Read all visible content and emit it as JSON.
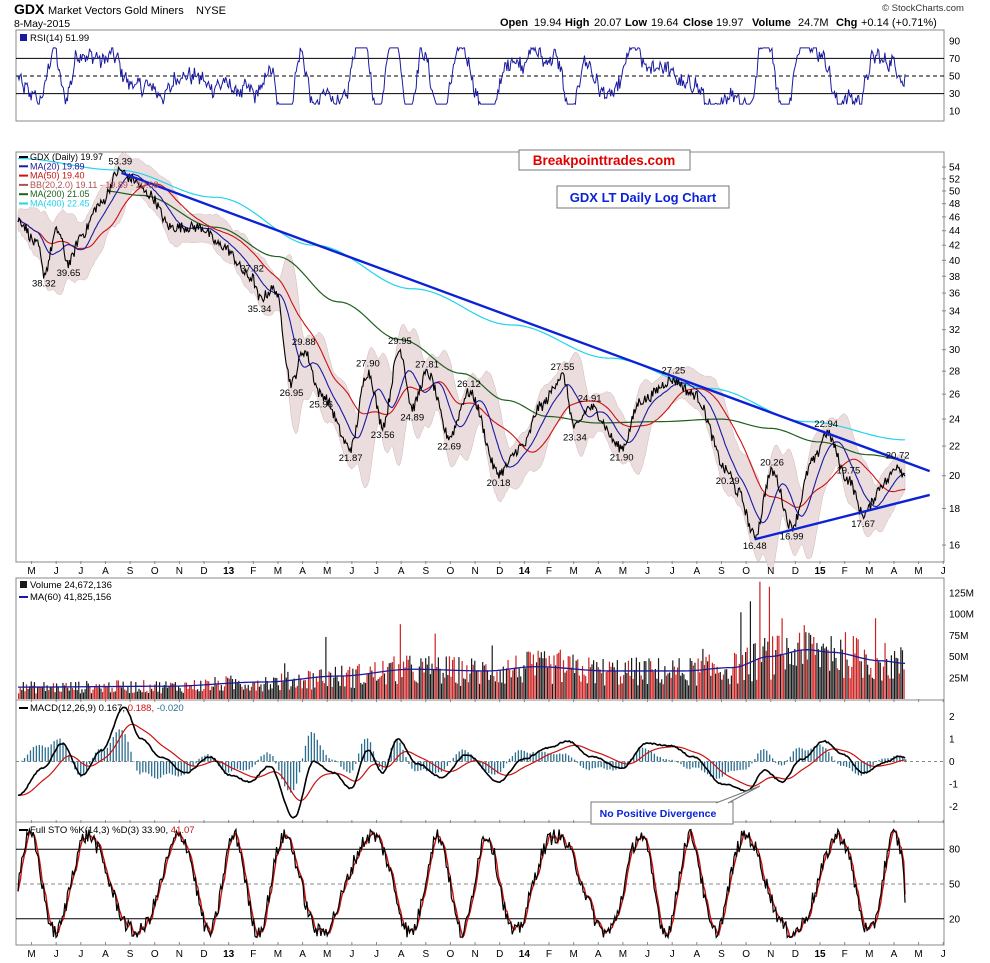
{
  "header": {
    "symbol": "GDX",
    "name": "Market Vectors Gold Miners",
    "exchange": "NYSE",
    "date": "8-May-2015",
    "watermark": "© StockCharts.com",
    "quote_labels": {
      "open": "Open",
      "high": "High",
      "low": "Low",
      "close": "Close",
      "volume": "Volume",
      "chg": "Chg"
    },
    "quote_values": {
      "open": "19.94",
      "high": "20.07",
      "low": "19.64",
      "close": "19.97",
      "volume": "24.7M",
      "chg": "+0.14 (+0.71%)"
    }
  },
  "annotations": {
    "site": "Breakpointtrades.com",
    "title": "GDX LT Daily Log Chart",
    "callout": "No Positive Divergence"
  },
  "colors": {
    "price": "#000000",
    "ma20": "#1a1aa0",
    "ma50": "#cc1111",
    "ma200": "#1f5f1f",
    "ma400": "#22d3ee",
    "bb_fill": "#e8d8d8",
    "trendline": "#0b22d6",
    "volume_up": "#1a1a1a",
    "volume_down": "#cc2222",
    "macd_hist": "#2c6e8e",
    "site_text": "#e00000",
    "title_text": "#0b22d6"
  },
  "chart_data": [
    {
      "panel": "rsi",
      "type": "line",
      "legend": "RSI(14) 51.99",
      "y_ticks": [
        "90",
        "70",
        "50",
        "30",
        "10"
      ],
      "ylim": [
        0,
        100
      ],
      "lines_at": [
        70,
        50,
        30
      ],
      "last": 51.99
    },
    {
      "panel": "price",
      "type": "line",
      "scale": "log",
      "ylim": [
        15.2,
        56.5
      ],
      "y_ticks": [
        "54",
        "52",
        "50",
        "48",
        "46",
        "44",
        "42",
        "40",
        "38",
        "36",
        "34",
        "32",
        "30",
        "28",
        "26",
        "24",
        "22",
        "20",
        "18",
        "16"
      ],
      "x_ticks": [
        "M",
        "J",
        "J",
        "A",
        "S",
        "O",
        "N",
        "D",
        "13",
        "F",
        "M",
        "A",
        "M",
        "J",
        "J",
        "A",
        "S",
        "O",
        "N",
        "D",
        "14",
        "F",
        "M",
        "A",
        "M",
        "J",
        "J",
        "A",
        "S",
        "O",
        "N",
        "D",
        "15",
        "F",
        "M",
        "A",
        "M",
        "J"
      ],
      "legend": [
        {
          "text": "GDX (Daily) 19.97",
          "color": "#000000"
        },
        {
          "text": "MA(20) 19.89",
          "color": "#1a1aa0"
        },
        {
          "text": "MA(50) 19.40",
          "color": "#cc1111"
        },
        {
          "text": "BB(20,2.0) 19.11 - 19.89 - 20.68",
          "color": "#b05050"
        },
        {
          "text": "MA(200) 21.05",
          "color": "#1f5f1f"
        },
        {
          "text": "MA(400) 22.45",
          "color": "#22d3ee"
        }
      ],
      "pivots": [
        {
          "t": 0.0,
          "v": 45.6
        },
        {
          "t": 0.8,
          "v": 42.0
        },
        {
          "t": 1.05,
          "v": 38.32
        },
        {
          "t": 1.6,
          "v": 44.0
        },
        {
          "t": 2.05,
          "v": 39.65
        },
        {
          "t": 2.6,
          "v": 43.5
        },
        {
          "t": 3.3,
          "v": 47.8
        },
        {
          "t": 4.15,
          "v": 53.39
        },
        {
          "t": 4.6,
          "v": 52.0
        },
        {
          "t": 5.3,
          "v": 49.5
        },
        {
          "t": 6.2,
          "v": 44.5
        },
        {
          "t": 7.4,
          "v": 44.5
        },
        {
          "t": 8.2,
          "v": 42.0
        },
        {
          "t": 9.5,
          "v": 37.82
        },
        {
          "t": 9.8,
          "v": 35.34
        },
        {
          "t": 10.4,
          "v": 36.5
        },
        {
          "t": 11.1,
          "v": 26.95
        },
        {
          "t": 11.6,
          "v": 29.88
        },
        {
          "t": 12.3,
          "v": 25.96
        },
        {
          "t": 13.5,
          "v": 21.87
        },
        {
          "t": 14.2,
          "v": 27.9
        },
        {
          "t": 14.8,
          "v": 23.56
        },
        {
          "t": 15.5,
          "v": 29.95
        },
        {
          "t": 16.0,
          "v": 24.89
        },
        {
          "t": 16.6,
          "v": 27.81
        },
        {
          "t": 17.5,
          "v": 22.69
        },
        {
          "t": 18.3,
          "v": 26.12
        },
        {
          "t": 19.5,
          "v": 20.18
        },
        {
          "t": 20.5,
          "v": 22.0
        },
        {
          "t": 21.2,
          "v": 25.0
        },
        {
          "t": 22.1,
          "v": 27.55
        },
        {
          "t": 22.6,
          "v": 23.34
        },
        {
          "t": 23.2,
          "v": 24.91
        },
        {
          "t": 24.5,
          "v": 21.9
        },
        {
          "t": 25.3,
          "v": 25.5
        },
        {
          "t": 26.6,
          "v": 27.25
        },
        {
          "t": 27.4,
          "v": 26.0
        },
        {
          "t": 28.8,
          "v": 20.29
        },
        {
          "t": 29.2,
          "v": 19.0
        },
        {
          "t": 29.9,
          "v": 16.48
        },
        {
          "t": 30.6,
          "v": 20.26
        },
        {
          "t": 31.4,
          "v": 16.99
        },
        {
          "t": 32.3,
          "v": 21.0
        },
        {
          "t": 32.8,
          "v": 22.94
        },
        {
          "t": 33.7,
          "v": 19.75
        },
        {
          "t": 34.3,
          "v": 17.67
        },
        {
          "t": 35.2,
          "v": 19.6
        },
        {
          "t": 35.7,
          "v": 20.72
        },
        {
          "t": 36.0,
          "v": 19.97
        }
      ],
      "labels": [
        {
          "text": "53.39",
          "t": 4.15,
          "v": 53.39,
          "pos": "above"
        },
        {
          "text": "38.32",
          "t": 1.05,
          "v": 38.32,
          "pos": "below"
        },
        {
          "text": "39.65",
          "t": 2.05,
          "v": 39.65,
          "pos": "below"
        },
        {
          "text": "37.82",
          "t": 9.5,
          "v": 37.82,
          "pos": "above"
        },
        {
          "text": "35.34",
          "t": 9.8,
          "v": 35.34,
          "pos": "below"
        },
        {
          "text": "29.88",
          "t": 11.6,
          "v": 29.88,
          "pos": "above"
        },
        {
          "text": "26.95",
          "t": 11.1,
          "v": 26.95,
          "pos": "below"
        },
        {
          "text": "25.96",
          "t": 12.3,
          "v": 25.96,
          "pos": "below"
        },
        {
          "text": "27.90",
          "t": 14.2,
          "v": 27.9,
          "pos": "above"
        },
        {
          "text": "21.87",
          "t": 13.5,
          "v": 21.87,
          "pos": "below"
        },
        {
          "text": "23.56",
          "t": 14.8,
          "v": 23.56,
          "pos": "below"
        },
        {
          "text": "29.95",
          "t": 15.5,
          "v": 29.95,
          "pos": "above"
        },
        {
          "text": "27.81",
          "t": 16.6,
          "v": 27.81,
          "pos": "above"
        },
        {
          "text": "24.89",
          "t": 16.0,
          "v": 24.89,
          "pos": "below"
        },
        {
          "text": "26.12",
          "t": 18.3,
          "v": 26.12,
          "pos": "above"
        },
        {
          "text": "22.69",
          "t": 17.5,
          "v": 22.69,
          "pos": "below"
        },
        {
          "text": "20.18",
          "t": 19.5,
          "v": 20.18,
          "pos": "below"
        },
        {
          "text": "27.55",
          "t": 22.1,
          "v": 27.55,
          "pos": "above"
        },
        {
          "text": "24.91",
          "t": 23.2,
          "v": 24.91,
          "pos": "above"
        },
        {
          "text": "23.34",
          "t": 22.6,
          "v": 23.34,
          "pos": "below"
        },
        {
          "text": "21.90",
          "t": 24.5,
          "v": 21.9,
          "pos": "below"
        },
        {
          "text": "27.25",
          "t": 26.6,
          "v": 27.25,
          "pos": "above"
        },
        {
          "text": "20.29",
          "t": 28.8,
          "v": 20.29,
          "pos": "below"
        },
        {
          "text": "16.48",
          "t": 29.9,
          "v": 16.48,
          "pos": "below"
        },
        {
          "text": "20.26",
          "t": 30.6,
          "v": 20.26,
          "pos": "above"
        },
        {
          "text": "16.99",
          "t": 31.4,
          "v": 16.99,
          "pos": "below"
        },
        {
          "text": "22.94",
          "t": 32.8,
          "v": 22.94,
          "pos": "above"
        },
        {
          "text": "19.75",
          "t": 33.7,
          "v": 19.75,
          "pos": "above"
        },
        {
          "text": "17.67",
          "t": 34.3,
          "v": 17.67,
          "pos": "below"
        },
        {
          "text": "20.72",
          "t": 35.7,
          "v": 20.72,
          "pos": "above"
        }
      ],
      "ma200_pivots": [
        {
          "t": 3.5,
          "v": 50.0
        },
        {
          "t": 5.0,
          "v": 49.3
        },
        {
          "t": 8.0,
          "v": 44.5
        },
        {
          "t": 10.5,
          "v": 40.5
        },
        {
          "t": 13.0,
          "v": 35.0
        },
        {
          "t": 15.5,
          "v": 31.0
        },
        {
          "t": 18.0,
          "v": 27.8
        },
        {
          "t": 19.8,
          "v": 25.5
        },
        {
          "t": 21.5,
          "v": 24.2
        },
        {
          "t": 23.5,
          "v": 23.7
        },
        {
          "t": 26.0,
          "v": 23.8
        },
        {
          "t": 28.5,
          "v": 24.0
        },
        {
          "t": 30.5,
          "v": 23.3
        },
        {
          "t": 32.5,
          "v": 22.3
        },
        {
          "t": 34.5,
          "v": 21.4
        },
        {
          "t": 36.0,
          "v": 21.05
        }
      ],
      "ma400_pivots": [
        {
          "t": 0.0,
          "v": 55.5
        },
        {
          "t": 4.0,
          "v": 53.5
        },
        {
          "t": 8.0,
          "v": 49.0
        },
        {
          "t": 12.0,
          "v": 42.0
        },
        {
          "t": 16.0,
          "v": 36.5
        },
        {
          "t": 20.0,
          "v": 32.5
        },
        {
          "t": 24.0,
          "v": 29.2
        },
        {
          "t": 28.0,
          "v": 26.5
        },
        {
          "t": 32.0,
          "v": 23.8
        },
        {
          "t": 36.0,
          "v": 22.45
        }
      ],
      "trendlines": [
        {
          "t0": 4.2,
          "v0": 53.0,
          "t1": 37.0,
          "v1": 20.3
        },
        {
          "t0": 29.9,
          "v0": 16.3,
          "t1": 37.0,
          "v1": 18.8
        }
      ]
    },
    {
      "panel": "volume",
      "type": "bar",
      "legend": "Volume 24,672,136",
      "legend_ma": "MA(60) 41,825,156",
      "y_ticks": [
        "125M",
        "100M",
        "75M",
        "50M",
        "25M"
      ],
      "ylim": [
        0,
        140
      ],
      "unit": "millions",
      "ma_pivots": [
        {
          "t": 0,
          "v": 14
        },
        {
          "t": 6,
          "v": 15
        },
        {
          "t": 10,
          "v": 20
        },
        {
          "t": 13,
          "v": 27
        },
        {
          "t": 16,
          "v": 35
        },
        {
          "t": 19,
          "v": 33
        },
        {
          "t": 21,
          "v": 38
        },
        {
          "t": 24,
          "v": 33
        },
        {
          "t": 27,
          "v": 33
        },
        {
          "t": 29,
          "v": 37
        },
        {
          "t": 30.5,
          "v": 50
        },
        {
          "t": 32,
          "v": 58
        },
        {
          "t": 33,
          "v": 55
        },
        {
          "t": 35,
          "v": 45
        },
        {
          "t": 36,
          "v": 42
        }
      ],
      "spikes": [
        {
          "t": 10.8,
          "v": 42
        },
        {
          "t": 12.5,
          "v": 73
        },
        {
          "t": 15.5,
          "v": 88
        },
        {
          "t": 16.9,
          "v": 77
        },
        {
          "t": 19.2,
          "v": 63
        },
        {
          "t": 21.3,
          "v": 48
        },
        {
          "t": 22.0,
          "v": 58
        },
        {
          "t": 27.8,
          "v": 59
        },
        {
          "t": 29.3,
          "v": 102
        },
        {
          "t": 29.7,
          "v": 115
        },
        {
          "t": 30.1,
          "v": 138
        },
        {
          "t": 30.5,
          "v": 132
        },
        {
          "t": 31.0,
          "v": 95
        },
        {
          "t": 31.7,
          "v": 78
        },
        {
          "t": 33.0,
          "v": 74
        },
        {
          "t": 34.8,
          "v": 95
        }
      ]
    },
    {
      "panel": "macd",
      "type": "line",
      "legend_main": "MACD(12,26,9) 0.167,",
      "legend_signal": "0.188,",
      "legend_hist": "-0.020",
      "y_ticks": [
        "2",
        "1",
        "0",
        "-1",
        "-2"
      ],
      "ylim": [
        -2.6,
        2.6
      ],
      "pivots": [
        {
          "t": 0,
          "v": -1.5
        },
        {
          "t": 1,
          "v": -0.3
        },
        {
          "t": 1.8,
          "v": 0.8
        },
        {
          "t": 2.6,
          "v": -0.6
        },
        {
          "t": 3.4,
          "v": 0.5
        },
        {
          "t": 4.3,
          "v": 2.4
        },
        {
          "t": 5.0,
          "v": 1.0
        },
        {
          "t": 5.8,
          "v": 0.2
        },
        {
          "t": 6.8,
          "v": -0.5
        },
        {
          "t": 7.8,
          "v": 0.2
        },
        {
          "t": 8.6,
          "v": -0.6
        },
        {
          "t": 9.4,
          "v": -0.9
        },
        {
          "t": 10.2,
          "v": -0.2
        },
        {
          "t": 11.2,
          "v": -2.5
        },
        {
          "t": 12.0,
          "v": 0.0
        },
        {
          "t": 12.8,
          "v": -0.5
        },
        {
          "t": 13.5,
          "v": -1.2
        },
        {
          "t": 14.2,
          "v": 0.5
        },
        {
          "t": 14.8,
          "v": -0.5
        },
        {
          "t": 15.4,
          "v": 1.0
        },
        {
          "t": 16.2,
          "v": -0.1
        },
        {
          "t": 17.2,
          "v": -0.7
        },
        {
          "t": 18.2,
          "v": 0.3
        },
        {
          "t": 19.5,
          "v": -0.9
        },
        {
          "t": 20.5,
          "v": 0.1
        },
        {
          "t": 21.5,
          "v": 0.6
        },
        {
          "t": 22.3,
          "v": 0.9
        },
        {
          "t": 23.3,
          "v": 0.2
        },
        {
          "t": 24.5,
          "v": -0.3
        },
        {
          "t": 25.5,
          "v": 0.8
        },
        {
          "t": 26.5,
          "v": 0.7
        },
        {
          "t": 27.4,
          "v": 0.2
        },
        {
          "t": 28.6,
          "v": -1.0
        },
        {
          "t": 29.6,
          "v": -1.3
        },
        {
          "t": 30.3,
          "v": -0.4
        },
        {
          "t": 31.0,
          "v": -0.9
        },
        {
          "t": 31.8,
          "v": 0.1
        },
        {
          "t": 32.7,
          "v": 0.9
        },
        {
          "t": 33.5,
          "v": 0.3
        },
        {
          "t": 34.3,
          "v": -0.5
        },
        {
          "t": 35.3,
          "v": 0.0
        },
        {
          "t": 35.8,
          "v": 0.25
        },
        {
          "t": 36.0,
          "v": 0.17
        }
      ]
    },
    {
      "panel": "stochastic",
      "type": "line",
      "legend_main": "Full STO %K(14,3) %D(3) 33.90,",
      "legend_d": "41.07",
      "y_ticks": [
        "80",
        "50",
        "20"
      ],
      "ylim": [
        0,
        100
      ],
      "lines_at": [
        80,
        50,
        20
      ],
      "last_k": 33.9,
      "last_d": 41.07
    }
  ]
}
